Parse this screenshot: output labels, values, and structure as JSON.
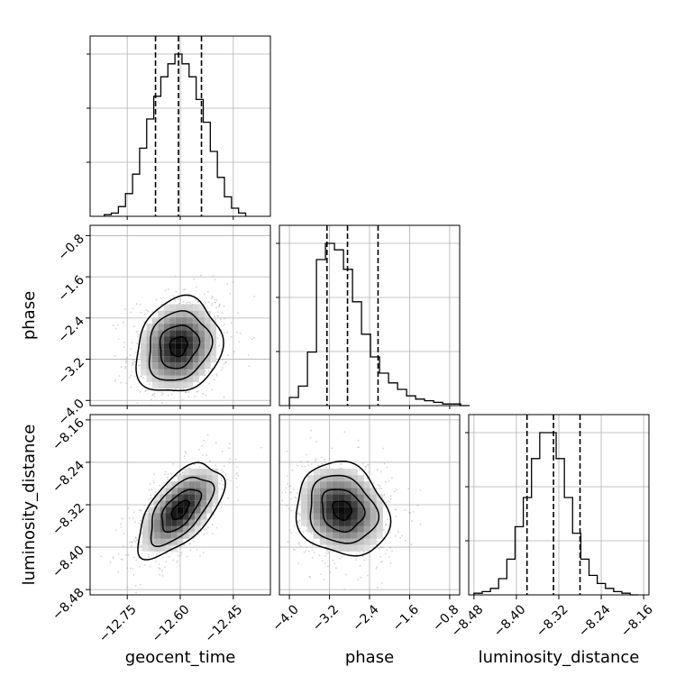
{
  "chart_data": {
    "type": "corner",
    "grid": true,
    "parameters": [
      "geocent_time",
      "phase",
      "luminosity_distance"
    ],
    "histograms": [
      {
        "name": "geocent_time",
        "bin_edges": [
          -12.815,
          -12.795,
          -12.775,
          -12.755,
          -12.735,
          -12.715,
          -12.695,
          -12.675,
          -12.655,
          -12.635,
          -12.615,
          -12.595,
          -12.575,
          -12.555,
          -12.535,
          -12.515,
          -12.495,
          -12.475,
          -12.455,
          -12.435,
          -12.415
        ],
        "counts": [
          0.01,
          0.02,
          0.06,
          0.14,
          0.26,
          0.42,
          0.6,
          0.74,
          0.86,
          0.94,
          1.0,
          0.94,
          0.86,
          0.72,
          0.58,
          0.4,
          0.24,
          0.12,
          0.05,
          0.02
        ],
        "quantiles": [
          -12.67,
          -12.605,
          -12.54
        ],
        "xlim": [
          -12.855,
          -12.345
        ]
      },
      {
        "name": "phase",
        "bin_edges": [
          -4.0,
          -3.82,
          -3.64,
          -3.46,
          -3.28,
          -3.1,
          -2.92,
          -2.74,
          -2.56,
          -2.38,
          -2.2,
          -2.02,
          -1.84,
          -1.66,
          -1.48,
          -1.3,
          -1.12,
          -0.94,
          -0.76,
          -0.58,
          -0.4
        ],
        "counts": [
          0.05,
          0.12,
          0.33,
          0.9,
          1.0,
          0.96,
          0.84,
          0.64,
          0.44,
          0.3,
          0.2,
          0.14,
          0.1,
          0.06,
          0.04,
          0.03,
          0.02,
          0.01,
          0.01,
          0.0
        ],
        "quantiles": [
          -3.25,
          -2.84,
          -2.23
        ],
        "xlim": [
          -4.2,
          -0.6
        ]
      },
      {
        "name": "luminosity_distance",
        "bin_edges": [
          -8.48,
          -8.4645,
          -8.449,
          -8.4335,
          -8.418,
          -8.4025,
          -8.387,
          -8.3715,
          -8.356,
          -8.3405,
          -8.325,
          -8.3095,
          -8.294,
          -8.2785,
          -8.263,
          -8.2475,
          -8.232,
          -8.2165,
          -8.201,
          -8.1855,
          -8.17
        ],
        "counts": [
          0.01,
          0.02,
          0.04,
          0.1,
          0.22,
          0.42,
          0.6,
          0.84,
          1.0,
          1.0,
          0.84,
          0.6,
          0.38,
          0.22,
          0.12,
          0.07,
          0.04,
          0.02,
          0.01,
          0.0
        ],
        "quantiles": [
          -8.38,
          -8.33,
          -8.28
        ],
        "xlim": [
          -8.49,
          -8.15
        ]
      }
    ],
    "pair_panels": [
      {
        "x": "geocent_time",
        "y": "phase",
        "xlim": [
          -12.855,
          -12.345
        ],
        "ylim": [
          -4.1,
          -0.6
        ],
        "center": [
          -12.605,
          -2.95
        ],
        "sigma": [
          0.055,
          0.42
        ],
        "correlation": 0.15
      },
      {
        "x": "geocent_time",
        "y": "luminosity_distance",
        "xlim": [
          -12.855,
          -12.345
        ],
        "ylim": [
          -8.49,
          -8.15
        ],
        "center": [
          -12.6,
          -8.33
        ],
        "sigma": [
          0.055,
          0.04
        ],
        "correlation": 0.6
      },
      {
        "x": "phase",
        "y": "luminosity_distance",
        "xlim": [
          -4.2,
          -0.6
        ],
        "ylim": [
          -8.49,
          -8.15
        ],
        "center": [
          -2.95,
          -8.33
        ],
        "sigma": [
          0.42,
          0.04
        ],
        "correlation": -0.15
      }
    ],
    "tick_labels": {
      "geocent_time": [
        "−12.75",
        "−12.60",
        "−12.45"
      ],
      "phase": [
        "−4.0",
        "−3.2",
        "−2.4",
        "−1.6",
        "−0.8"
      ],
      "luminosity_distance": [
        "−8.48",
        "−8.40",
        "−8.32",
        "−8.24",
        "−8.16"
      ]
    },
    "tick_values": {
      "geocent_time": [
        -12.75,
        -12.6,
        -12.45
      ],
      "phase": [
        -4.0,
        -3.2,
        -2.4,
        -1.6,
        -0.8
      ],
      "luminosity_distance": [
        -8.48,
        -8.4,
        -8.32,
        -8.24,
        -8.16
      ]
    },
    "axis_labels": {
      "x": [
        "geocent_time",
        "phase",
        "luminosity_distance"
      ],
      "y": [
        "",
        "phase",
        "luminosity_distance"
      ]
    },
    "colors": {
      "line": "#000000",
      "grid": "#b0b0b0",
      "points": "#9e9e9e"
    }
  }
}
